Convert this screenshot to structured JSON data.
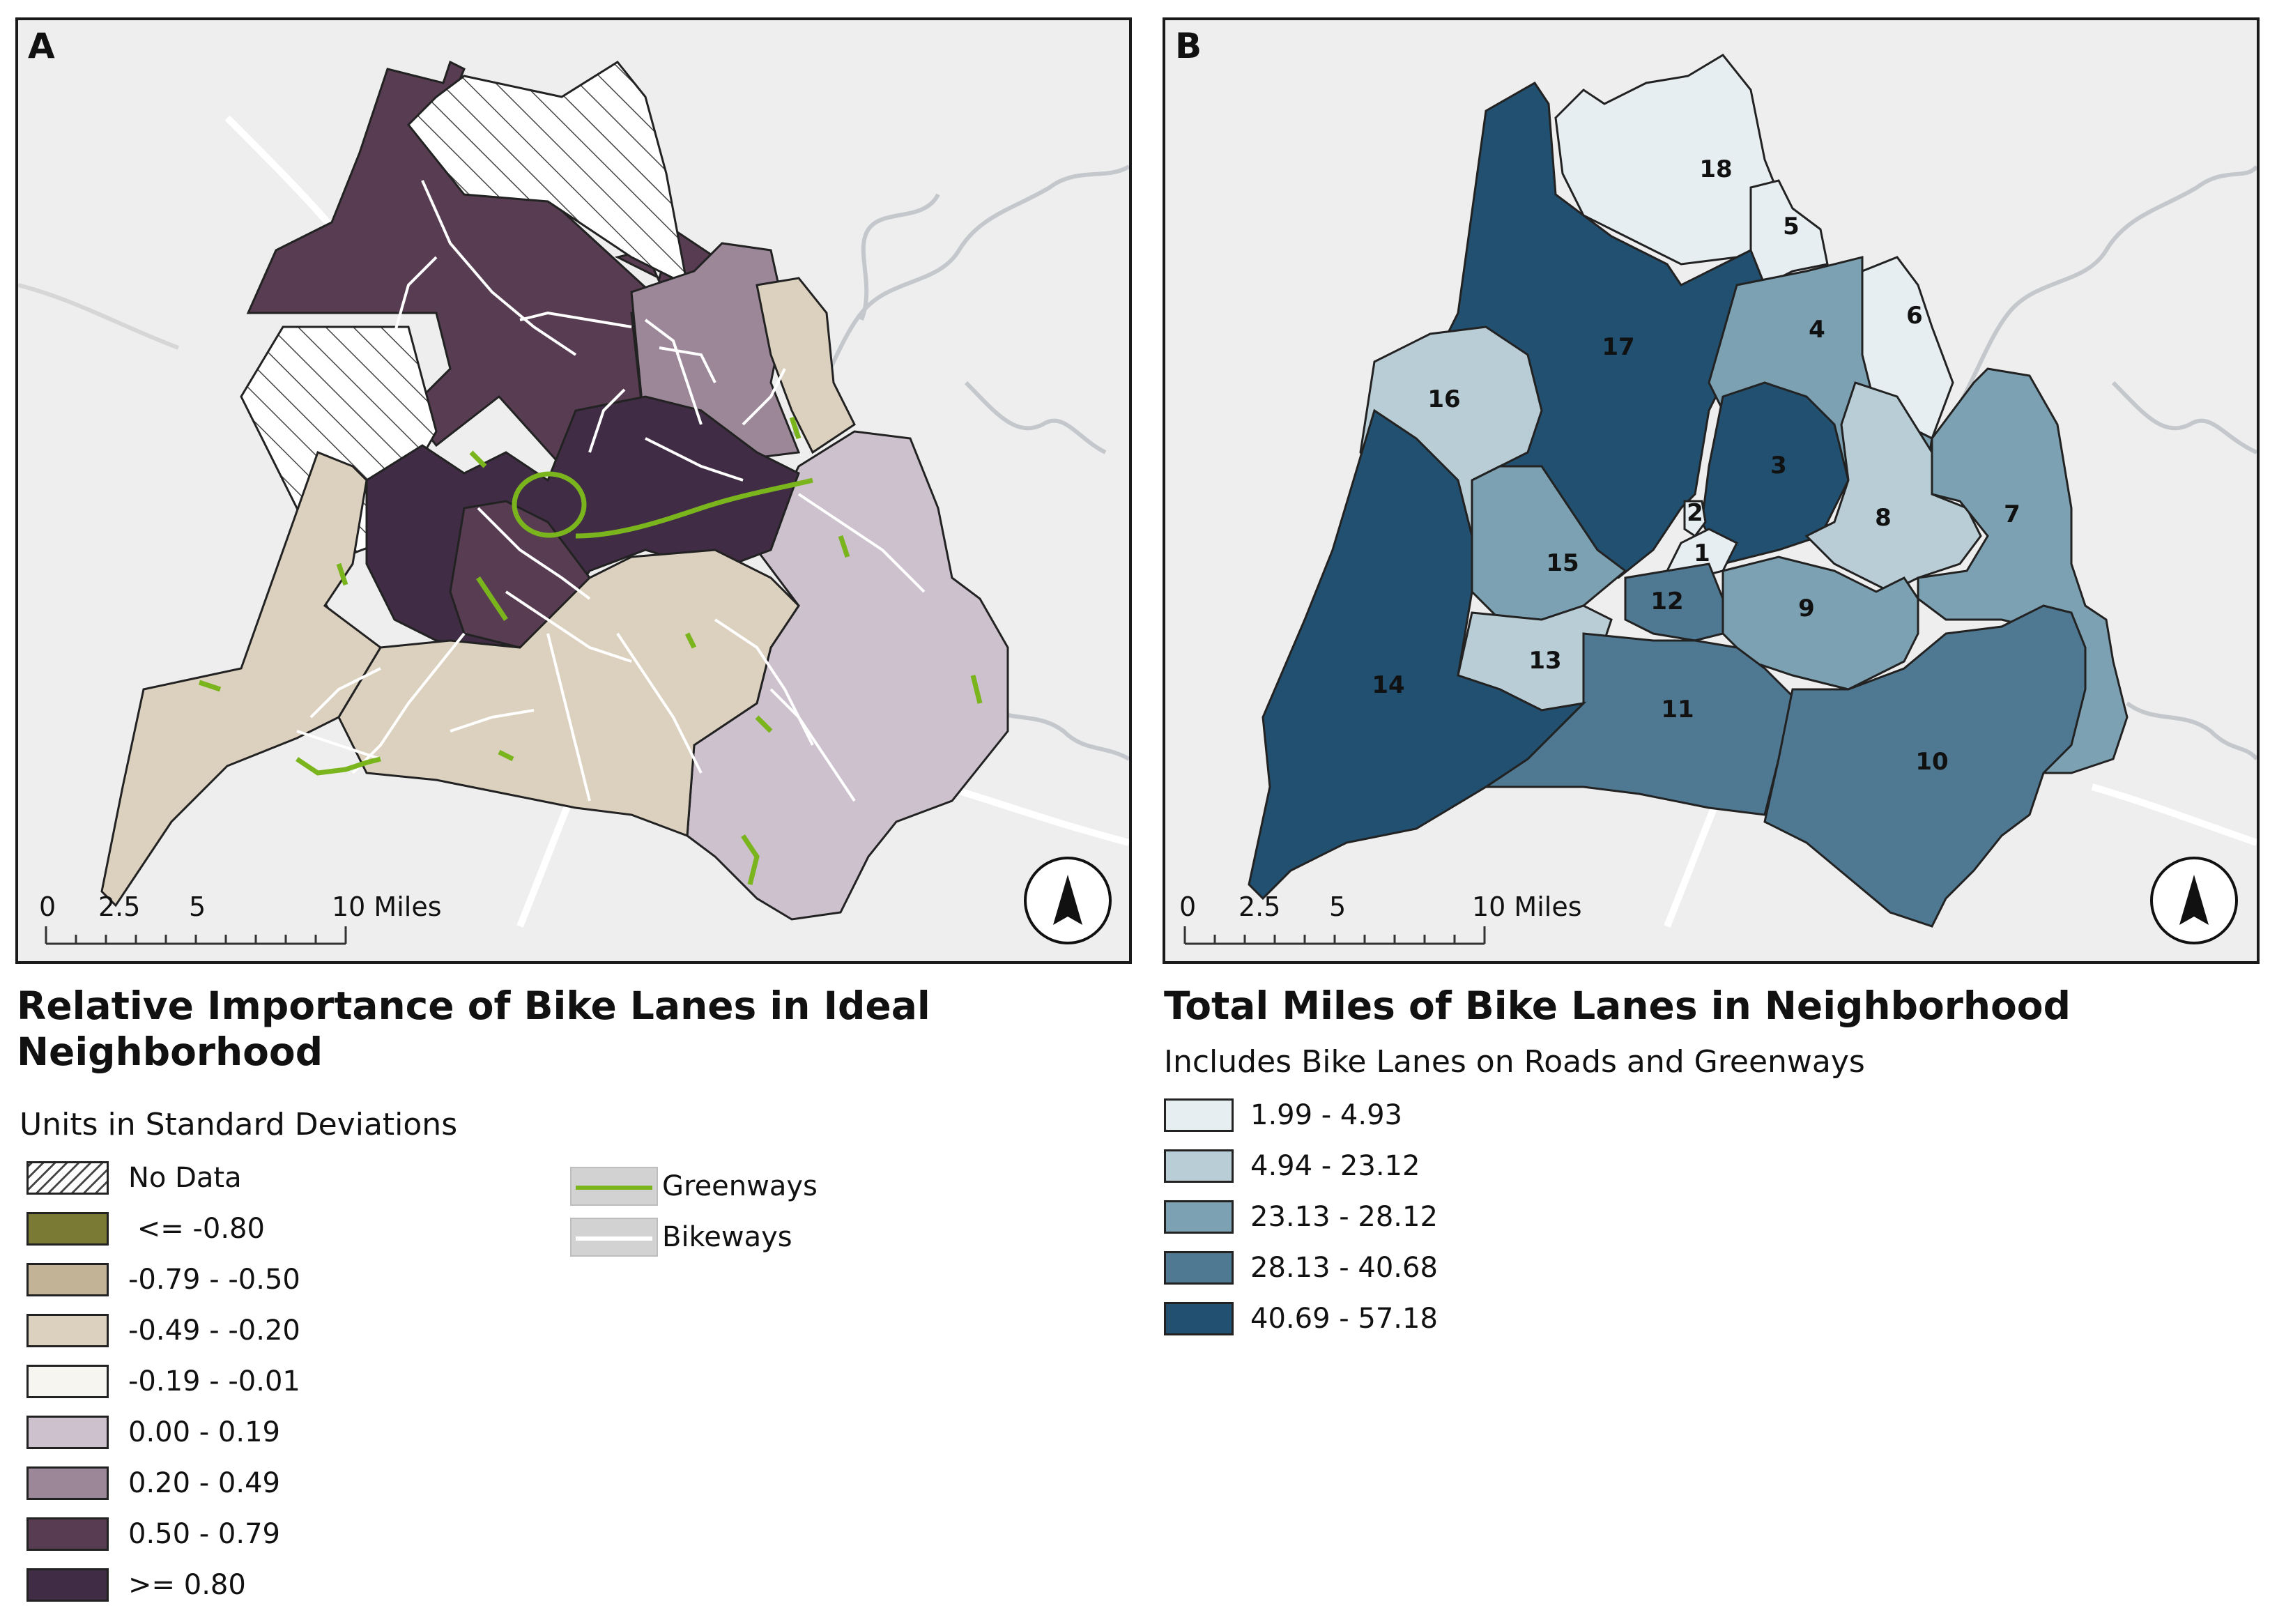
{
  "panel_a": {
    "letter": "A",
    "title_line1": "Relative Importance of Bike Lanes in Ideal",
    "title_line2": "Neighborhood",
    "units": "Units in Standard Deviations",
    "scale": {
      "t0": "0",
      "t1": "2.5",
      "t2": "5",
      "t3": "10 Miles"
    },
    "legend": [
      {
        "label": "No Data",
        "color": "hatch"
      },
      {
        "label": " <= -0.80",
        "color": "#7a7a34"
      },
      {
        "label": "-0.79 - -0.50",
        "color": "#c2b397"
      },
      {
        "label": "-0.49 - -0.20",
        "color": "#dcd1be"
      },
      {
        "label": "-0.19 - -0.01",
        "color": "#f7f5ef"
      },
      {
        "label": "0.00 - 0.19",
        "color": "#ccc1cd"
      },
      {
        "label": "0.20 - 0.49",
        "color": "#9c8799"
      },
      {
        "label": "0.50 - 0.79",
        "color": "#583d52"
      },
      {
        "label": ">= 0.80",
        "color": "#402c44"
      }
    ],
    "lines_legend": [
      {
        "label": "Greenways",
        "color": "#7ab51d"
      },
      {
        "label": "Bikeways",
        "color": "#ffffff"
      }
    ]
  },
  "panel_b": {
    "letter": "B",
    "title": "Total Miles of Bike Lanes in Neighborhood",
    "subtitle": "Includes Bike Lanes on Roads and Greenways",
    "scale": {
      "t0": "0",
      "t1": "2.5",
      "t2": "5",
      "t3": "10 Miles"
    },
    "legend": [
      {
        "label": "1.99 - 4.93",
        "color": "#e7eef1"
      },
      {
        "label": "4.94 - 23.12",
        "color": "#b9cdd6"
      },
      {
        "label": "23.13 - 28.12",
        "color": "#7ca1b2"
      },
      {
        "label": "28.13 - 40.68",
        "color": "#4f7992"
      },
      {
        "label": "40.69 - 57.18",
        "color": "#215070"
      }
    ],
    "neighborhoods": [
      {
        "id": "1",
        "class": 0
      },
      {
        "id": "2",
        "class": 0
      },
      {
        "id": "3",
        "class": 4
      },
      {
        "id": "4",
        "class": 2
      },
      {
        "id": "5",
        "class": 0
      },
      {
        "id": "6",
        "class": 0
      },
      {
        "id": "7",
        "class": 2
      },
      {
        "id": "8",
        "class": 1
      },
      {
        "id": "9",
        "class": 2
      },
      {
        "id": "10",
        "class": 3
      },
      {
        "id": "11",
        "class": 3
      },
      {
        "id": "12",
        "class": 3
      },
      {
        "id": "13",
        "class": 1
      },
      {
        "id": "14",
        "class": 4
      },
      {
        "id": "15",
        "class": 2
      },
      {
        "id": "16",
        "class": 1
      },
      {
        "id": "17",
        "class": 4
      },
      {
        "id": "18",
        "class": 0
      }
    ]
  }
}
